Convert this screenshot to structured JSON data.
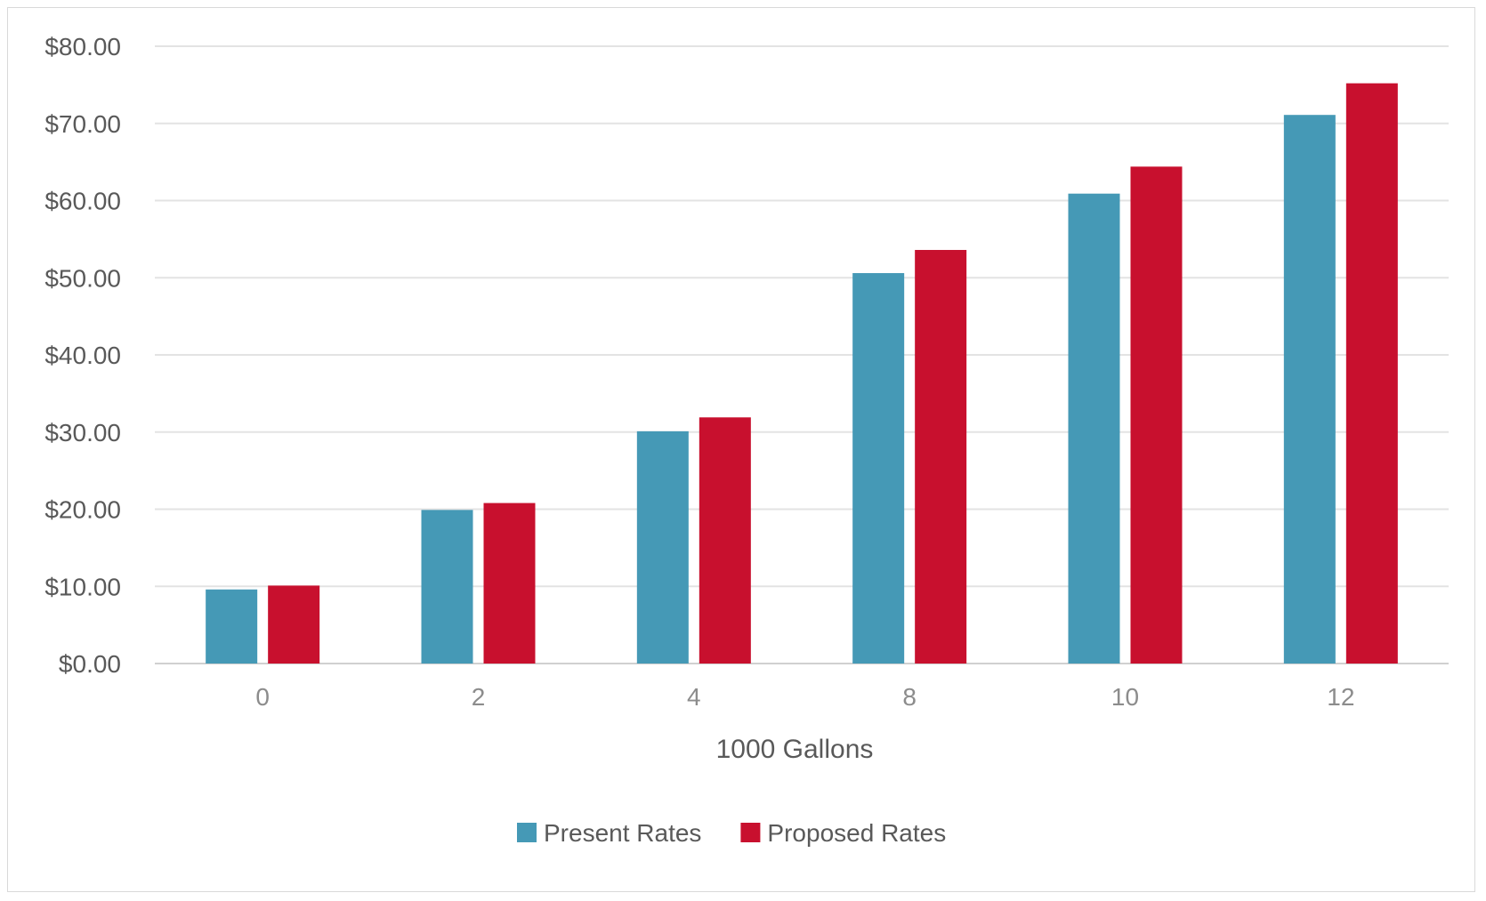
{
  "chart_data": {
    "type": "bar",
    "title": "",
    "xlabel": "1000 Gallons",
    "ylabel": "",
    "categories": [
      "0",
      "2",
      "4",
      "8",
      "10",
      "12"
    ],
    "series": [
      {
        "name": "Present Rates",
        "color": "#4599B6",
        "values": [
          9.6,
          19.9,
          30.1,
          50.6,
          60.9,
          71.1
        ]
      },
      {
        "name": "Proposed Rates",
        "color": "#C8102E",
        "values": [
          10.1,
          20.8,
          31.9,
          53.6,
          64.4,
          75.2
        ]
      }
    ],
    "ylim": [
      0,
      80
    ],
    "yticks": [
      "$0.00",
      "$10.00",
      "$20.00",
      "$30.00",
      "$40.00",
      "$50.00",
      "$60.00",
      "$70.00",
      "$80.00"
    ],
    "grid": true,
    "legend_position": "bottom"
  }
}
